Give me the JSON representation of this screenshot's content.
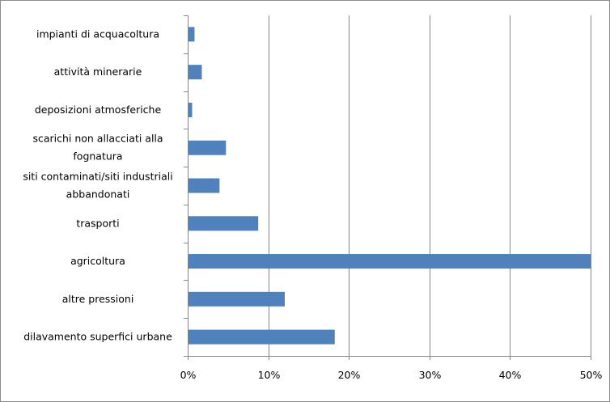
{
  "chart_data": {
    "type": "bar",
    "orientation": "horizontal",
    "categories": [
      [
        "impianti di acquacoltura"
      ],
      [
        "attività minerarie"
      ],
      [
        "deposizioni atmosferiche"
      ],
      [
        "scarichi non allacciati alla",
        "fognatura"
      ],
      [
        "siti contaminati/siti industriali",
        "abbandonati"
      ],
      [
        "trasporti"
      ],
      [
        "agricoltura"
      ],
      [
        "altre pressioni"
      ],
      [
        "dilavamento superfici urbane"
      ]
    ],
    "values": [
      0.008,
      0.017,
      0.005,
      0.047,
      0.039,
      0.087,
      0.5,
      0.12,
      0.182
    ],
    "xlim": [
      0,
      0.5
    ],
    "ticks": [
      0,
      0.1,
      0.2,
      0.3,
      0.4,
      0.5
    ],
    "tick_labels": [
      "0%",
      "10%",
      "20%",
      "30%",
      "40%",
      "50%"
    ],
    "bar_color": "#4f81bd",
    "grid": true,
    "legend": "none"
  }
}
